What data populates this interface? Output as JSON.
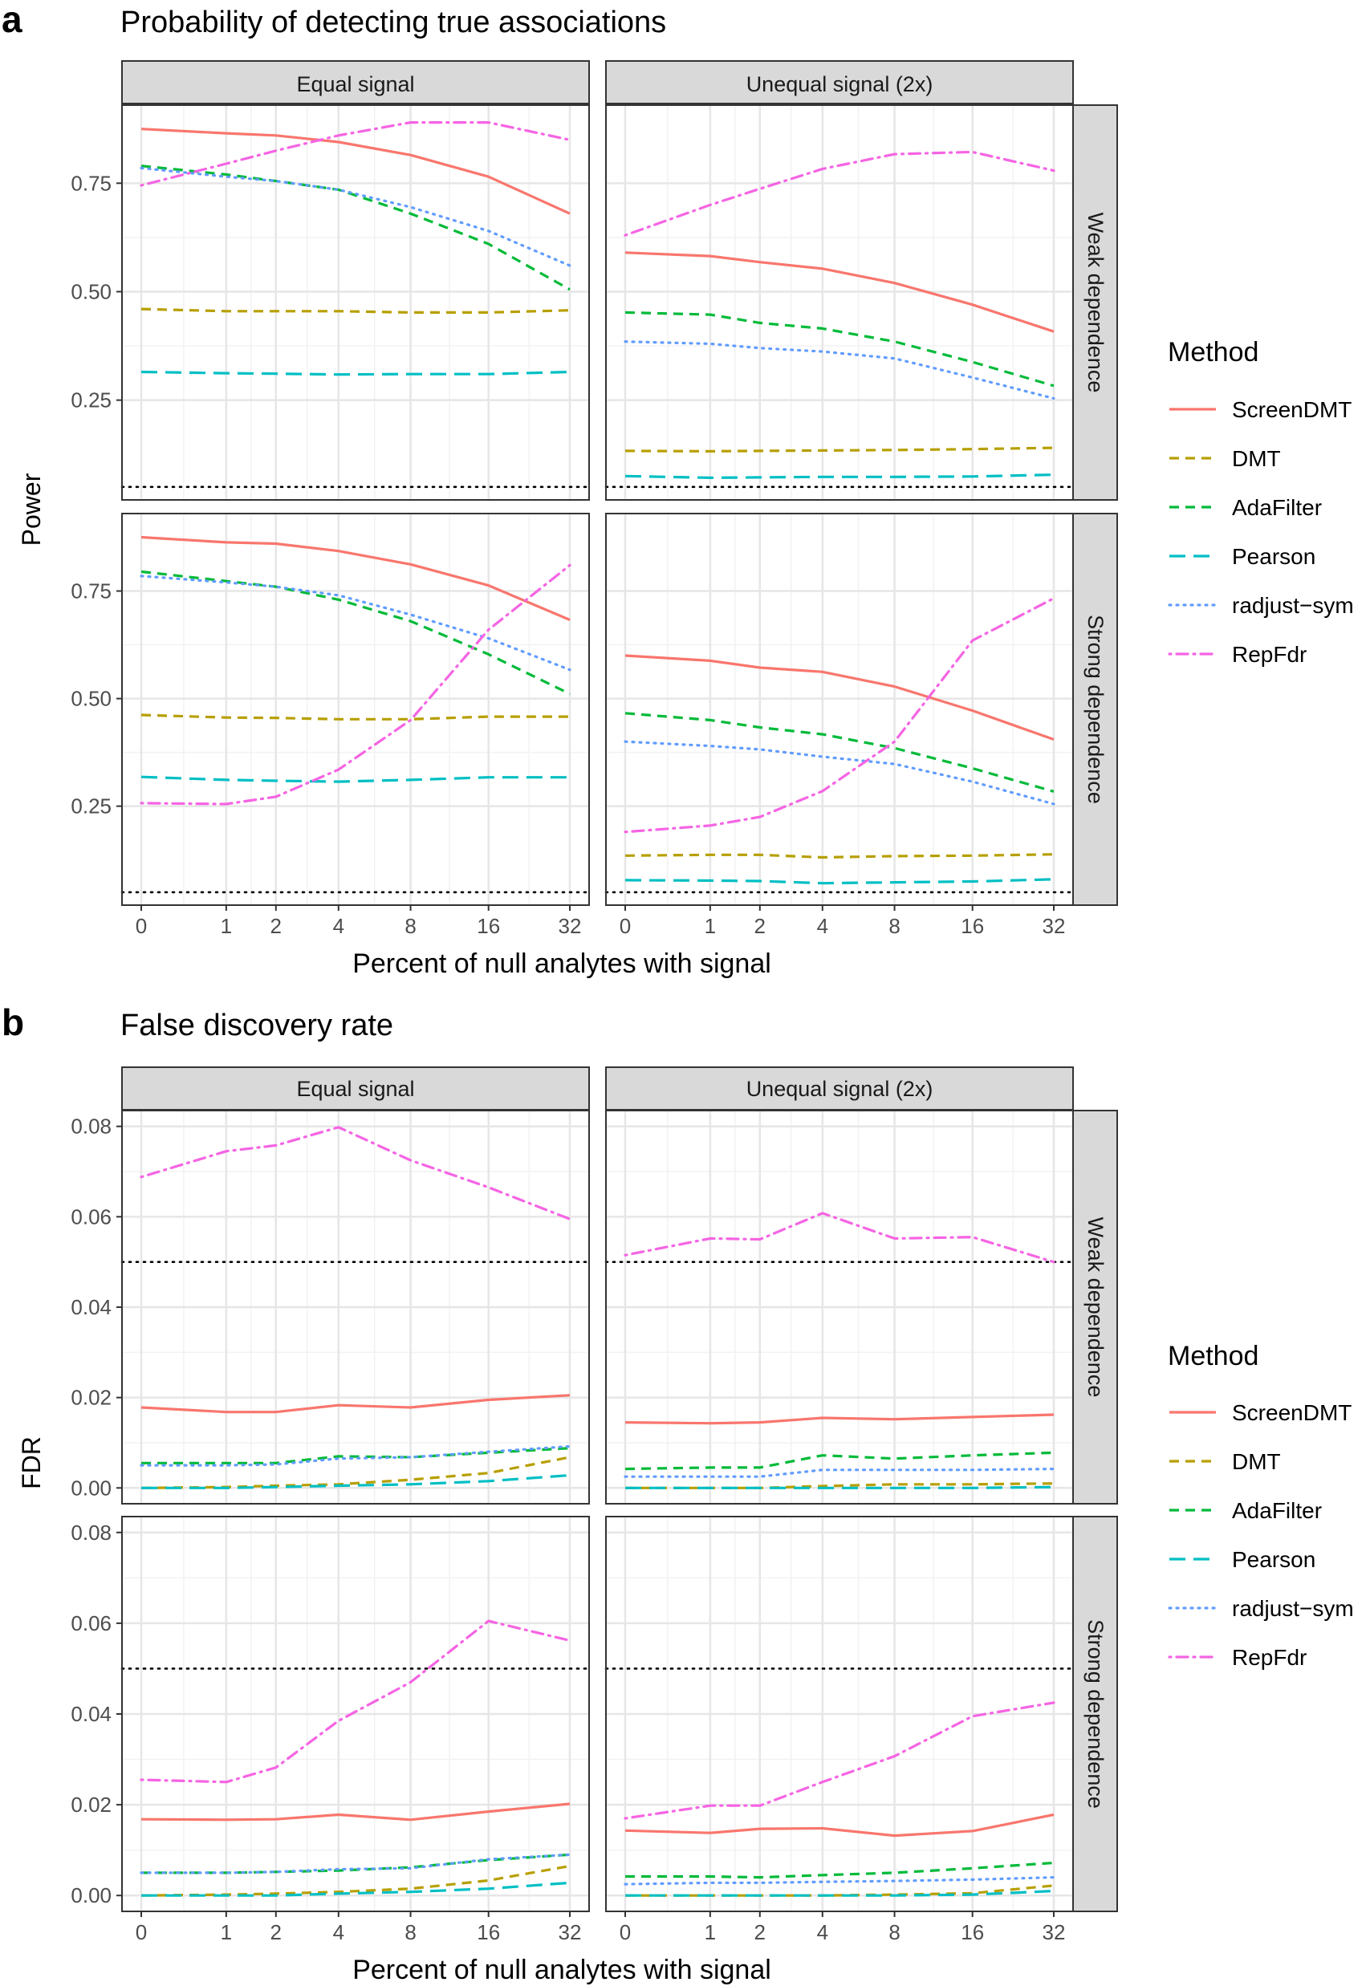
{
  "panels": [
    {
      "letter": "a",
      "title": "Probability of detecting true associations",
      "ylabel": "Power",
      "xlabel": "Percent of null analytes with signal"
    },
    {
      "letter": "b",
      "title": "False discovery rate",
      "ylabel": "FDR",
      "xlabel": "Percent of null analytes with signal"
    }
  ],
  "column_strips": [
    "Equal signal",
    "Unequal signal (2x)"
  ],
  "row_strips": [
    "Weak dependence",
    "Strong dependence"
  ],
  "legend": {
    "title": "Method",
    "items": [
      {
        "name": "ScreenDMT",
        "color": "#F8766D",
        "dash": "solid"
      },
      {
        "name": "DMT",
        "color": "#B79F00",
        "dash": "dashed"
      },
      {
        "name": "AdaFilter",
        "color": "#00BA38",
        "dash": "dashed"
      },
      {
        "name": "Pearson",
        "color": "#00BFC4",
        "dash": "longdash"
      },
      {
        "name": "radjust−sym",
        "color": "#619CFF",
        "dash": "dotted"
      },
      {
        "name": "RepFdr",
        "color": "#F564E3",
        "dash": "dotdash"
      }
    ]
  },
  "chart_data": [
    {
      "type": "line",
      "title": "Probability of detecting true associations",
      "xlabel": "Percent of null analytes with signal",
      "ylabel": "Power",
      "x_scale": "log(x+1)",
      "x": [
        0,
        1,
        2,
        4,
        8,
        16,
        32
      ],
      "y_ticks": [
        0.25,
        0.5,
        0.75
      ],
      "ylim": [
        0.02,
        0.93
      ],
      "reference_line": 0.05,
      "facets": [
        {
          "column": "Equal signal",
          "row": "Weak dependence",
          "series": [
            {
              "name": "ScreenDMT",
              "values": [
                0.875,
                0.865,
                0.86,
                0.845,
                0.815,
                0.765,
                0.68
              ]
            },
            {
              "name": "DMT",
              "values": [
                0.46,
                0.455,
                0.455,
                0.455,
                0.452,
                0.452,
                0.457
              ]
            },
            {
              "name": "AdaFilter",
              "values": [
                0.79,
                0.77,
                0.755,
                0.735,
                0.68,
                0.61,
                0.505
              ]
            },
            {
              "name": "Pearson",
              "values": [
                0.315,
                0.312,
                0.311,
                0.309,
                0.31,
                0.31,
                0.315
              ]
            },
            {
              "name": "radjust−sym",
              "values": [
                0.785,
                0.765,
                0.755,
                0.735,
                0.695,
                0.64,
                0.56
              ]
            },
            {
              "name": "RepFdr",
              "values": [
                0.745,
                0.795,
                0.825,
                0.86,
                0.89,
                0.89,
                0.85
              ]
            }
          ]
        },
        {
          "column": "Unequal signal (2x)",
          "row": "Weak dependence",
          "series": [
            {
              "name": "ScreenDMT",
              "values": [
                0.59,
                0.582,
                0.568,
                0.553,
                0.52,
                0.47,
                0.408
              ]
            },
            {
              "name": "DMT",
              "values": [
                0.133,
                0.132,
                0.133,
                0.134,
                0.135,
                0.137,
                0.14
              ]
            },
            {
              "name": "AdaFilter",
              "values": [
                0.452,
                0.447,
                0.428,
                0.415,
                0.385,
                0.338,
                0.283
              ]
            },
            {
              "name": "Pearson",
              "values": [
                0.075,
                0.071,
                0.072,
                0.073,
                0.073,
                0.074,
                0.078
              ]
            },
            {
              "name": "radjust−sym",
              "values": [
                0.385,
                0.38,
                0.37,
                0.362,
                0.346,
                0.302,
                0.254
              ]
            },
            {
              "name": "RepFdr",
              "values": [
                0.63,
                0.7,
                0.737,
                0.783,
                0.817,
                0.822,
                0.779
              ]
            }
          ]
        },
        {
          "column": "Equal signal",
          "row": "Strong dependence",
          "series": [
            {
              "name": "ScreenDMT",
              "values": [
                0.875,
                0.863,
                0.86,
                0.843,
                0.812,
                0.763,
                0.683
              ]
            },
            {
              "name": "DMT",
              "values": [
                0.462,
                0.456,
                0.455,
                0.452,
                0.452,
                0.458,
                0.458
              ]
            },
            {
              "name": "AdaFilter",
              "values": [
                0.795,
                0.773,
                0.76,
                0.73,
                0.68,
                0.603,
                0.511
              ]
            },
            {
              "name": "Pearson",
              "values": [
                0.318,
                0.311,
                0.309,
                0.307,
                0.311,
                0.317,
                0.317
              ]
            },
            {
              "name": "radjust−sym",
              "values": [
                0.785,
                0.77,
                0.76,
                0.74,
                0.695,
                0.64,
                0.567
              ]
            },
            {
              "name": "RepFdr",
              "values": [
                0.257,
                0.255,
                0.272,
                0.335,
                0.45,
                0.66,
                0.81
              ]
            }
          ]
        },
        {
          "column": "Unequal signal (2x)",
          "row": "Strong dependence",
          "series": [
            {
              "name": "ScreenDMT",
              "values": [
                0.6,
                0.588,
                0.572,
                0.562,
                0.528,
                0.472,
                0.405
              ]
            },
            {
              "name": "DMT",
              "values": [
                0.135,
                0.137,
                0.137,
                0.131,
                0.134,
                0.135,
                0.138
              ]
            },
            {
              "name": "AdaFilter",
              "values": [
                0.466,
                0.45,
                0.433,
                0.417,
                0.385,
                0.338,
                0.284
              ]
            },
            {
              "name": "Pearson",
              "values": [
                0.078,
                0.077,
                0.076,
                0.071,
                0.073,
                0.075,
                0.08
              ]
            },
            {
              "name": "radjust−sym",
              "values": [
                0.4,
                0.39,
                0.382,
                0.365,
                0.348,
                0.307,
                0.255
              ]
            },
            {
              "name": "RepFdr",
              "values": [
                0.19,
                0.205,
                0.225,
                0.285,
                0.4,
                0.635,
                0.733
              ]
            }
          ]
        }
      ]
    },
    {
      "type": "line",
      "title": "False discovery rate",
      "xlabel": "Percent of null analytes with signal",
      "ylabel": "FDR",
      "x_scale": "log(x+1)",
      "x": [
        0,
        1,
        2,
        4,
        8,
        16,
        32
      ],
      "y_ticks": [
        0.0,
        0.02,
        0.04,
        0.06,
        0.08
      ],
      "y_tick_labels": [
        "0.00",
        "0.02",
        "0.04",
        "0.06",
        "0.08"
      ],
      "ylim": [
        -0.0035,
        0.0835
      ],
      "reference_line": 0.05,
      "facets": [
        {
          "column": "Equal signal",
          "row": "Weak dependence",
          "series": [
            {
              "name": "ScreenDMT",
              "values": [
                0.0178,
                0.0168,
                0.0168,
                0.0183,
                0.0178,
                0.0195,
                0.0205
              ]
            },
            {
              "name": "DMT",
              "values": [
                0.0,
                0.0002,
                0.0005,
                0.0008,
                0.0018,
                0.0033,
                0.0068
              ]
            },
            {
              "name": "AdaFilter",
              "values": [
                0.0055,
                0.0055,
                0.0055,
                0.007,
                0.0068,
                0.0078,
                0.0088
              ]
            },
            {
              "name": "Pearson",
              "values": [
                0.0,
                0.0,
                0.0002,
                0.0005,
                0.0008,
                0.0015,
                0.0028
              ]
            },
            {
              "name": "radjust−sym",
              "values": [
                0.005,
                0.005,
                0.0052,
                0.0065,
                0.0068,
                0.008,
                0.0092
              ]
            },
            {
              "name": "RepFdr",
              "values": [
                0.0688,
                0.0745,
                0.0758,
                0.0798,
                0.0725,
                0.0665,
                0.0595
              ]
            }
          ]
        },
        {
          "column": "Unequal signal (2x)",
          "row": "Weak dependence",
          "series": [
            {
              "name": "ScreenDMT",
              "values": [
                0.0145,
                0.0143,
                0.0145,
                0.0155,
                0.0152,
                0.0157,
                0.0162
              ]
            },
            {
              "name": "DMT",
              "values": [
                0.0,
                0.0,
                0.0,
                0.0004,
                0.0008,
                0.0008,
                0.001
              ]
            },
            {
              "name": "AdaFilter",
              "values": [
                0.0042,
                0.0045,
                0.0045,
                0.0072,
                0.0065,
                0.0072,
                0.0078
              ]
            },
            {
              "name": "Pearson",
              "values": [
                0.0,
                0.0,
                0.0,
                0.0,
                0.0,
                0.0,
                0.0002
              ]
            },
            {
              "name": "radjust−sym",
              "values": [
                0.0025,
                0.0025,
                0.0025,
                0.004,
                0.004,
                0.004,
                0.0042
              ]
            },
            {
              "name": "RepFdr",
              "values": [
                0.0515,
                0.0552,
                0.055,
                0.0608,
                0.0552,
                0.0555,
                0.05
              ]
            }
          ]
        },
        {
          "column": "Equal signal",
          "row": "Strong dependence",
          "series": [
            {
              "name": "ScreenDMT",
              "values": [
                0.0168,
                0.0167,
                0.0168,
                0.0178,
                0.0167,
                0.0185,
                0.0202
              ]
            },
            {
              "name": "DMT",
              "values": [
                0.0,
                0.0002,
                0.0004,
                0.0008,
                0.0015,
                0.0033,
                0.0065
              ]
            },
            {
              "name": "AdaFilter",
              "values": [
                0.005,
                0.005,
                0.0052,
                0.0055,
                0.0062,
                0.0078,
                0.009
              ]
            },
            {
              "name": "Pearson",
              "values": [
                0.0,
                0.0,
                0.0,
                0.0004,
                0.0008,
                0.0015,
                0.0028
              ]
            },
            {
              "name": "radjust−sym",
              "values": [
                0.005,
                0.005,
                0.0052,
                0.0058,
                0.006,
                0.008,
                0.009
              ]
            },
            {
              "name": "RepFdr",
              "values": [
                0.0255,
                0.025,
                0.0282,
                0.0385,
                0.047,
                0.0605,
                0.0562
              ]
            }
          ]
        },
        {
          "column": "Unequal signal (2x)",
          "row": "Strong dependence",
          "series": [
            {
              "name": "ScreenDMT",
              "values": [
                0.0143,
                0.0138,
                0.0147,
                0.0148,
                0.0132,
                0.0142,
                0.0178
              ]
            },
            {
              "name": "DMT",
              "values": [
                0.0,
                0.0,
                0.0,
                0.0,
                0.0002,
                0.0005,
                0.0022
              ]
            },
            {
              "name": "AdaFilter",
              "values": [
                0.0042,
                0.0042,
                0.004,
                0.0045,
                0.005,
                0.006,
                0.0072
              ]
            },
            {
              "name": "Pearson",
              "values": [
                0.0,
                0.0,
                0.0,
                0.0,
                0.0,
                0.0002,
                0.001
              ]
            },
            {
              "name": "radjust−sym",
              "values": [
                0.0025,
                0.0028,
                0.0028,
                0.003,
                0.0032,
                0.0035,
                0.004
              ]
            },
            {
              "name": "RepFdr",
              "values": [
                0.017,
                0.0198,
                0.0198,
                0.025,
                0.0307,
                0.0395,
                0.0425
              ]
            }
          ]
        }
      ]
    }
  ]
}
